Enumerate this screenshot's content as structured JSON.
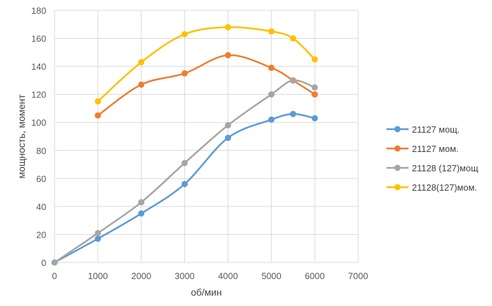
{
  "chart_data": {
    "type": "line",
    "title": "",
    "xlabel": "об/мин",
    "ylabel": "мощность, момент",
    "xlim": [
      0,
      7000
    ],
    "ylim": [
      0,
      180
    ],
    "xticks": [
      0,
      1000,
      2000,
      3000,
      4000,
      5000,
      6000,
      7000
    ],
    "yticks": [
      0,
      20,
      40,
      60,
      80,
      100,
      120,
      140,
      160,
      180
    ],
    "grid": true,
    "legend_position": "right",
    "series": [
      {
        "name": "21127 мощ.",
        "color": "#5B9BD5",
        "x": [
          0,
          1000,
          2000,
          3000,
          4000,
          5000,
          5500,
          6000
        ],
        "y": [
          0,
          17,
          35,
          56,
          89,
          102,
          106,
          103
        ]
      },
      {
        "name": "21127 мом.",
        "color": "#ED7D31",
        "x": [
          1000,
          2000,
          3000,
          4000,
          5000,
          5500,
          6000
        ],
        "y": [
          105,
          127,
          135,
          148,
          139,
          130,
          120
        ]
      },
      {
        "name": "21128 (127)мощ",
        "color": "#A5A5A5",
        "x": [
          0,
          1000,
          2000,
          3000,
          4000,
          5000,
          5500,
          6000
        ],
        "y": [
          0,
          21,
          43,
          71,
          98,
          120,
          130,
          125
        ]
      },
      {
        "name": "21128(127)мом.",
        "color": "#FFC000",
        "x": [
          1000,
          2000,
          3000,
          4000,
          5000,
          5500,
          6000
        ],
        "y": [
          115,
          143,
          163,
          168,
          165,
          160,
          145
        ]
      }
    ]
  }
}
